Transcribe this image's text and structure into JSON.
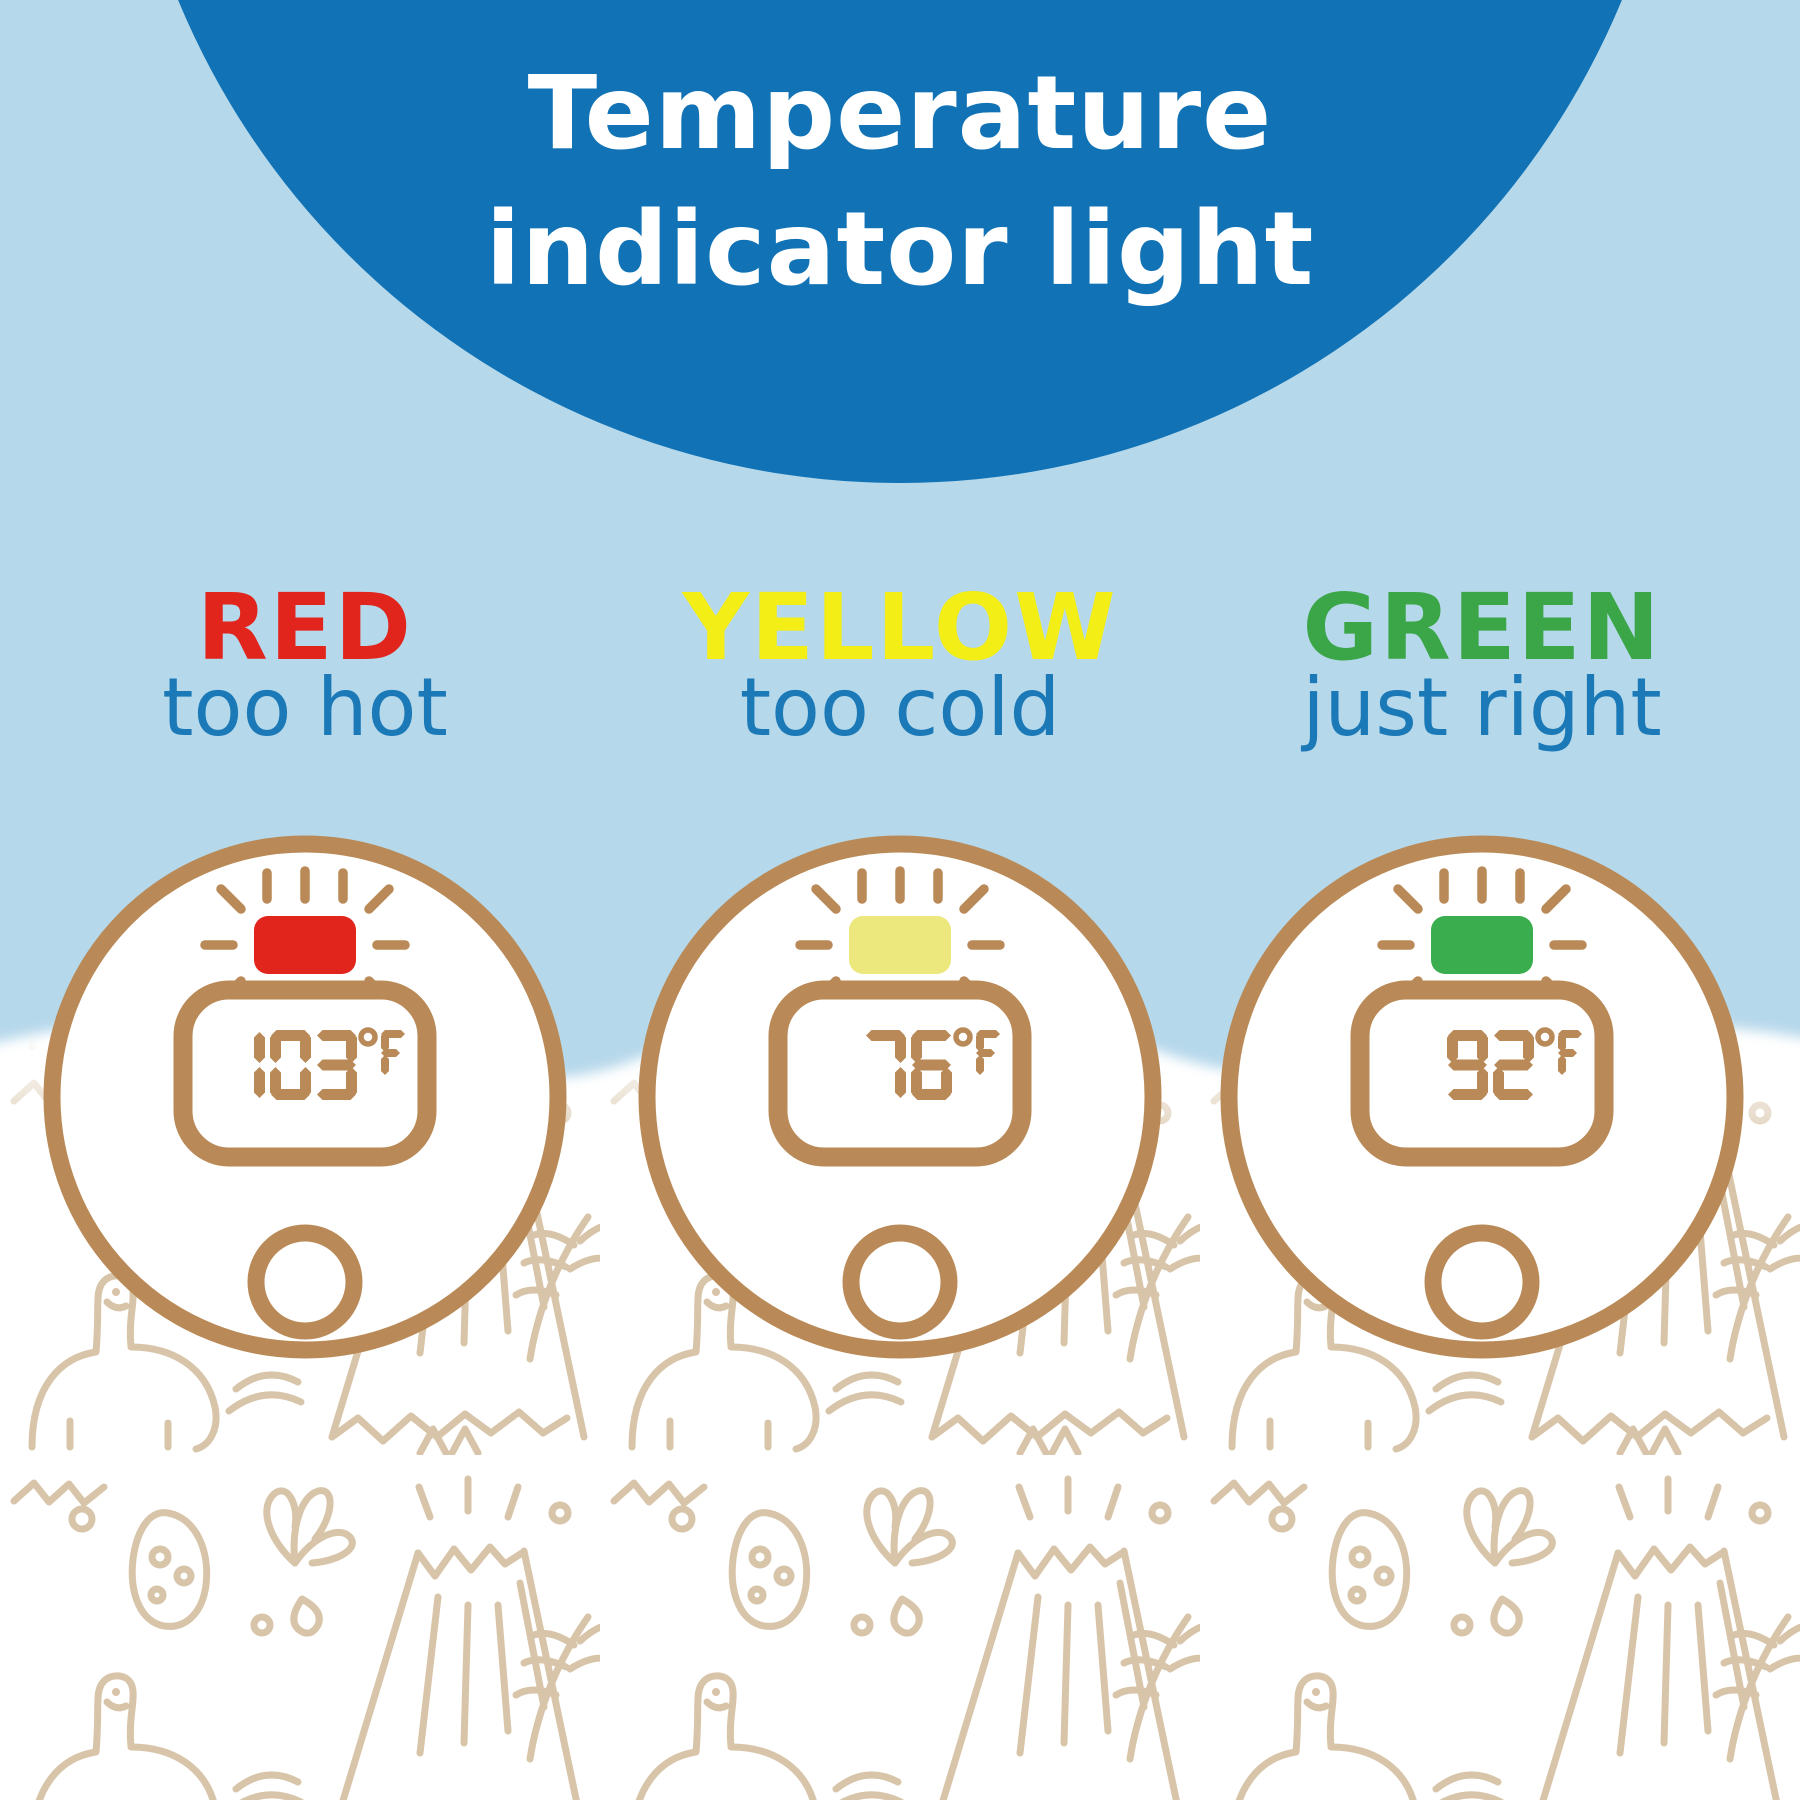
{
  "title": {
    "line1": "Temperature",
    "line2": "indicator light"
  },
  "colors": {
    "background_top": "#b6d8eb",
    "header_circle": "#1173b5",
    "title_text": "#ffffff",
    "device_outline": "#b98a57",
    "device_face": "#ffffff",
    "doodle_line": "#d8c4a8",
    "ground": "#ffffff",
    "sublabel_text": "#1a79b6"
  },
  "columns": [
    {
      "label": "RED",
      "label_color": "#e2251c",
      "sublabel": "too hot",
      "led_color": "#e2251c",
      "temperature": "103",
      "unit": "°F"
    },
    {
      "label": "YELLOW",
      "label_color": "#f2ee16",
      "sublabel": "too cold",
      "led_color": "#ece87e",
      "temperature": "76",
      "unit": "°F"
    },
    {
      "label": "GREEN",
      "label_color": "#3ba648",
      "sublabel": "just right",
      "led_color": "#3aad4e",
      "temperature": "92",
      "unit": "°F"
    }
  ]
}
